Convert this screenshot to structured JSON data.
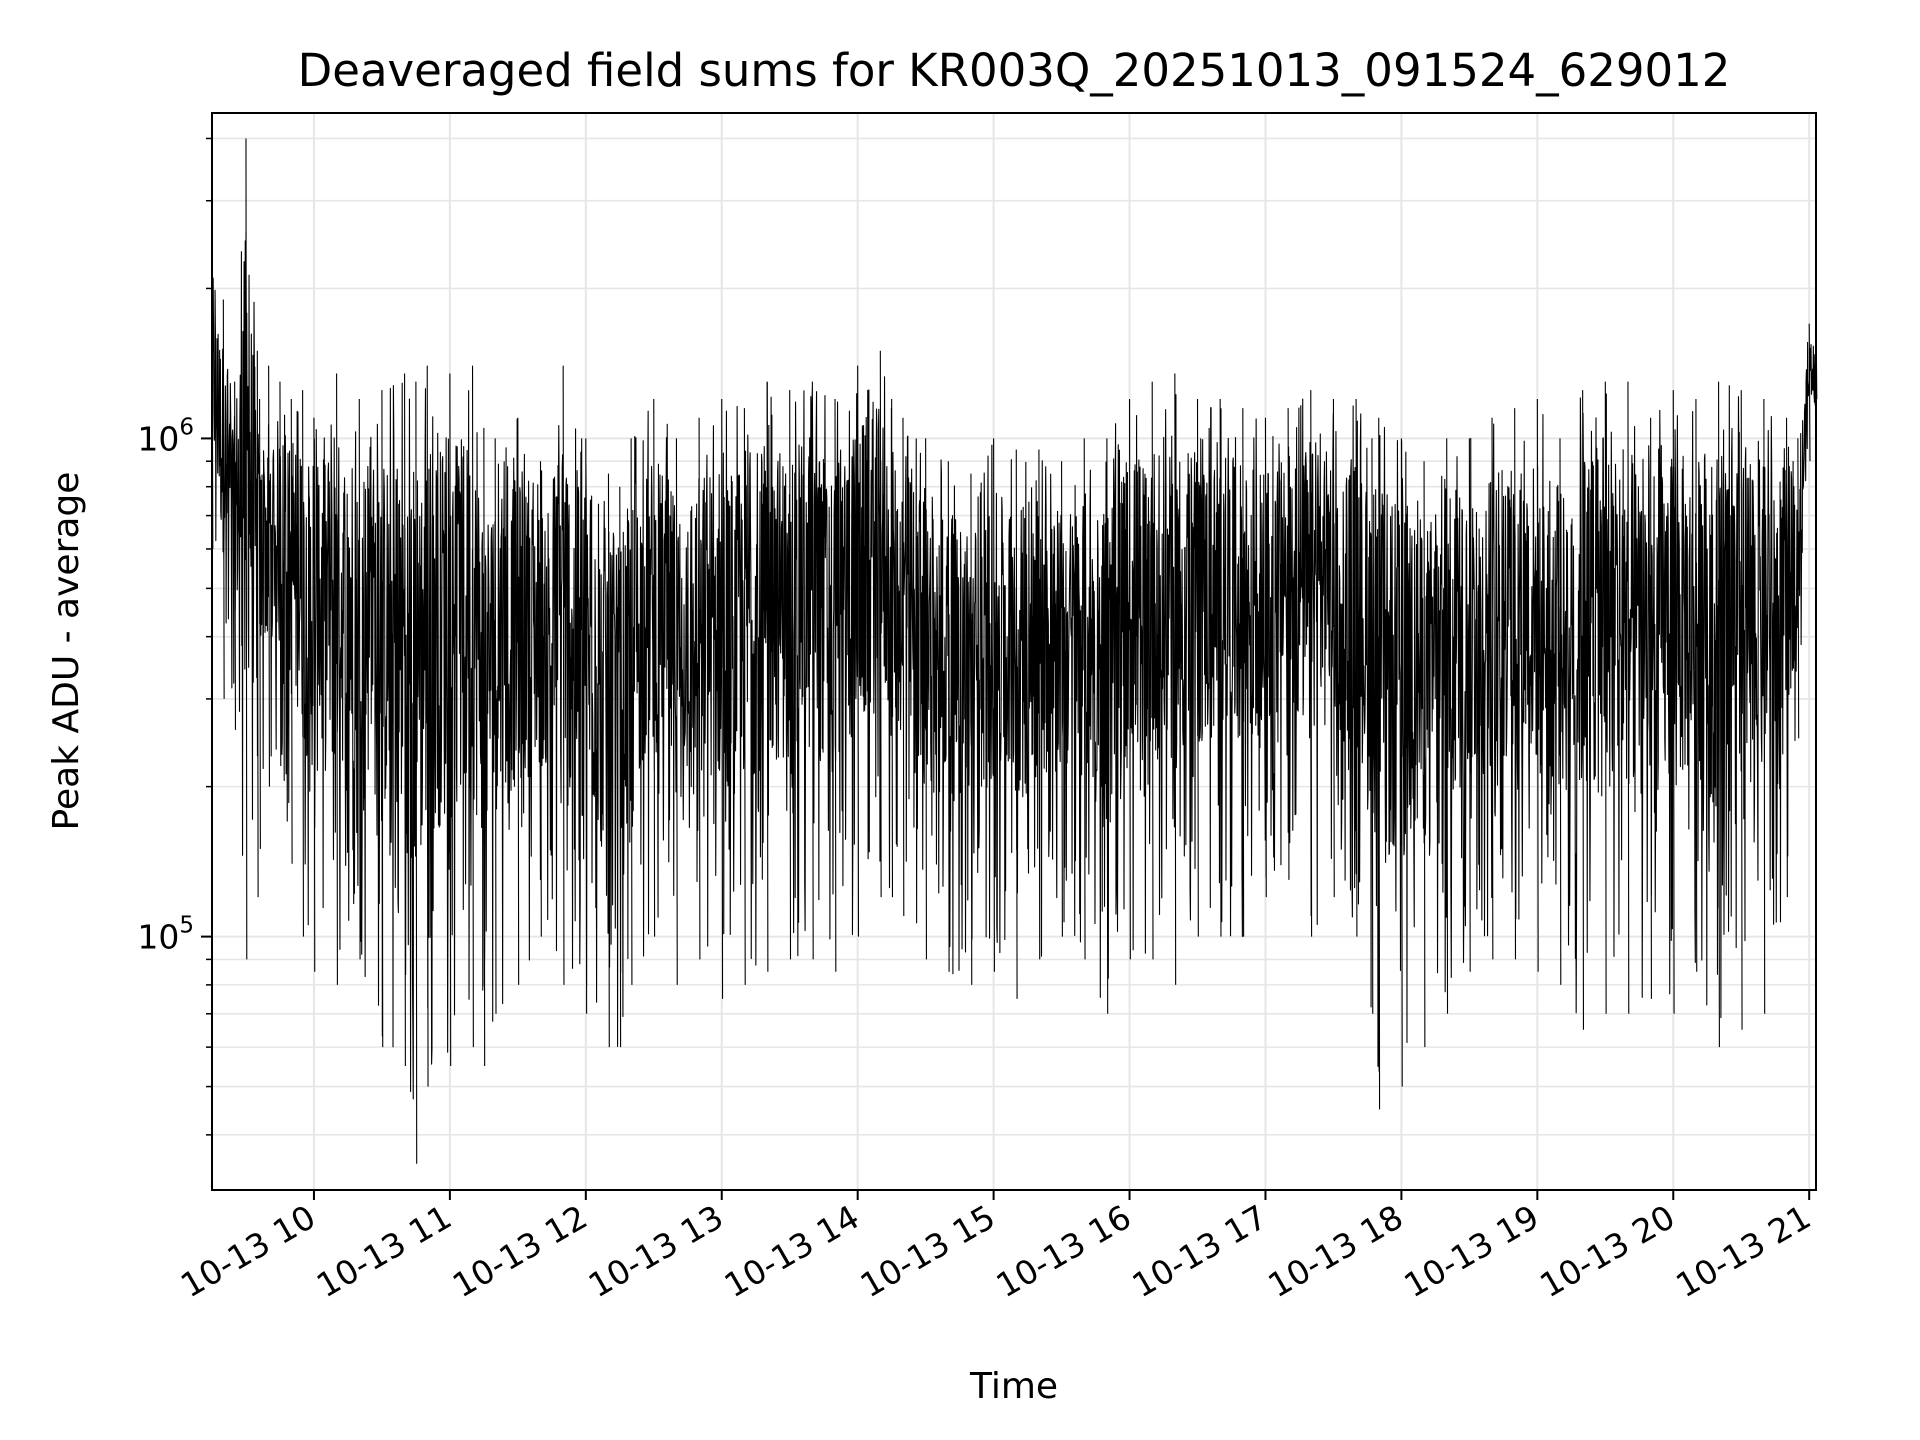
{
  "chart_data": {
    "type": "line",
    "title": "Deaveraged field sums for KR003Q_20251013_091524_629012",
    "xlabel": "Time",
    "ylabel": "Peak ADU - average",
    "yscale": "log",
    "grid": true,
    "line_color": "#000000",
    "grid_color": "#e6e6e6",
    "xlim": [
      "2025-10-13 09:15",
      "2025-10-13 21:03"
    ],
    "ylim": [
      31000,
      4500000
    ],
    "x_ticks": [
      {
        "value": "2025-10-13 10:00",
        "label": "10-13 10"
      },
      {
        "value": "2025-10-13 11:00",
        "label": "10-13 11"
      },
      {
        "value": "2025-10-13 12:00",
        "label": "10-13 12"
      },
      {
        "value": "2025-10-13 13:00",
        "label": "10-13 13"
      },
      {
        "value": "2025-10-13 14:00",
        "label": "10-13 14"
      },
      {
        "value": "2025-10-13 15:00",
        "label": "10-13 15"
      },
      {
        "value": "2025-10-13 16:00",
        "label": "10-13 16"
      },
      {
        "value": "2025-10-13 17:00",
        "label": "10-13 17"
      },
      {
        "value": "2025-10-13 18:00",
        "label": "10-13 18"
      },
      {
        "value": "2025-10-13 19:00",
        "label": "10-13 19"
      },
      {
        "value": "2025-10-13 20:00",
        "label": "10-13 20"
      },
      {
        "value": "2025-10-13 21:00",
        "label": "10-13 21"
      }
    ],
    "y_ticks_major": [
      {
        "value": 100000,
        "base": "10",
        "exp": "5"
      },
      {
        "value": 1000000,
        "base": "10",
        "exp": "6"
      }
    ],
    "series": [
      {
        "x": [
          "2025-10-13 09:15",
          "2025-10-13 09:20",
          "2025-10-13 09:25",
          "2025-10-13 09:30",
          "2025-10-13 09:35",
          "2025-10-13 09:36",
          "2025-10-13 09:40",
          "2025-10-13 09:45",
          "2025-10-13 09:50",
          "2025-10-13 09:55",
          "2025-10-13 10:00",
          "2025-10-13 10:10",
          "2025-10-13 10:20",
          "2025-10-13 10:30",
          "2025-10-13 10:40",
          "2025-10-13 10:45",
          "2025-10-13 10:50",
          "2025-10-13 11:00",
          "2025-10-13 11:10",
          "2025-10-13 11:15",
          "2025-10-13 11:20",
          "2025-10-13 11:30",
          "2025-10-13 11:40",
          "2025-10-13 11:50",
          "2025-10-13 12:00",
          "2025-10-13 12:10",
          "2025-10-13 12:15",
          "2025-10-13 12:20",
          "2025-10-13 12:30",
          "2025-10-13 12:40",
          "2025-10-13 12:50",
          "2025-10-13 13:00",
          "2025-10-13 13:10",
          "2025-10-13 13:20",
          "2025-10-13 13:30",
          "2025-10-13 13:40",
          "2025-10-13 13:50",
          "2025-10-13 14:00",
          "2025-10-13 14:10",
          "2025-10-13 14:15",
          "2025-10-13 14:20",
          "2025-10-13 14:30",
          "2025-10-13 14:40",
          "2025-10-13 14:50",
          "2025-10-13 15:00",
          "2025-10-13 15:10",
          "2025-10-13 15:20",
          "2025-10-13 15:30",
          "2025-10-13 15:40",
          "2025-10-13 15:50",
          "2025-10-13 16:00",
          "2025-10-13 16:10",
          "2025-10-13 16:20",
          "2025-10-13 16:30",
          "2025-10-13 16:40",
          "2025-10-13 16:50",
          "2025-10-13 17:00",
          "2025-10-13 17:10",
          "2025-10-13 17:20",
          "2025-10-13 17:30",
          "2025-10-13 17:40",
          "2025-10-13 17:47",
          "2025-10-13 17:50",
          "2025-10-13 18:00",
          "2025-10-13 18:10",
          "2025-10-13 18:20",
          "2025-10-13 18:30",
          "2025-10-13 18:40",
          "2025-10-13 18:50",
          "2025-10-13 19:00",
          "2025-10-13 19:10",
          "2025-10-13 19:20",
          "2025-10-13 19:30",
          "2025-10-13 19:40",
          "2025-10-13 19:50",
          "2025-10-13 20:00",
          "2025-10-13 20:10",
          "2025-10-13 20:20",
          "2025-10-13 20:30",
          "2025-10-13 20:40",
          "2025-10-13 20:50",
          "2025-10-13 20:55",
          "2025-10-13 21:00",
          "2025-10-13 21:03"
        ],
        "y_high": [
          2200000,
          1900000,
          1300000,
          4000000,
          1500000,
          1200000,
          1400000,
          1300000,
          1200000,
          1250000,
          1100000,
          1350000,
          1200000,
          1250000,
          1350000,
          1300000,
          1400000,
          1350000,
          1400000,
          1050000,
          1000000,
          1100000,
          900000,
          1400000,
          1000000,
          850000,
          800000,
          1000000,
          1200000,
          1000000,
          1100000,
          1200000,
          1150000,
          1300000,
          1250000,
          1300000,
          1200000,
          1400000,
          1500000,
          1200000,
          1100000,
          1000000,
          900000,
          850000,
          1000000,
          950000,
          950000,
          900000,
          1000000,
          1000000,
          1200000,
          1300000,
          1350000,
          1200000,
          1200000,
          1150000,
          1100000,
          1150000,
          1250000,
          1200000,
          1200000,
          1000000,
          1100000,
          1000000,
          900000,
          1000000,
          1000000,
          1100000,
          1150000,
          1200000,
          1000000,
          1250000,
          1300000,
          1300000,
          1100000,
          1250000,
          1200000,
          1300000,
          1250000,
          1200000,
          1100000,
          1000000,
          1700000,
          1800000
        ],
        "y_low": [
          600000,
          300000,
          260000,
          90000,
          120000,
          150000,
          200000,
          220000,
          140000,
          100000,
          85000,
          80000,
          90000,
          60000,
          55000,
          35000,
          50000,
          55000,
          60000,
          55000,
          70000,
          80000,
          100000,
          80000,
          70000,
          60000,
          60000,
          80000,
          100000,
          80000,
          90000,
          75000,
          80000,
          85000,
          90000,
          90000,
          85000,
          100000,
          120000,
          120000,
          110000,
          90000,
          85000,
          80000,
          85000,
          75000,
          90000,
          100000,
          90000,
          70000,
          90000,
          90000,
          80000,
          100000,
          100000,
          100000,
          120000,
          130000,
          100000,
          120000,
          100000,
          70000,
          45000,
          50000,
          60000,
          70000,
          85000,
          90000,
          90000,
          85000,
          80000,
          65000,
          70000,
          70000,
          75000,
          70000,
          85000,
          60000,
          65000,
          70000,
          120000,
          250000,
          900000,
          1200000
        ]
      }
    ]
  }
}
